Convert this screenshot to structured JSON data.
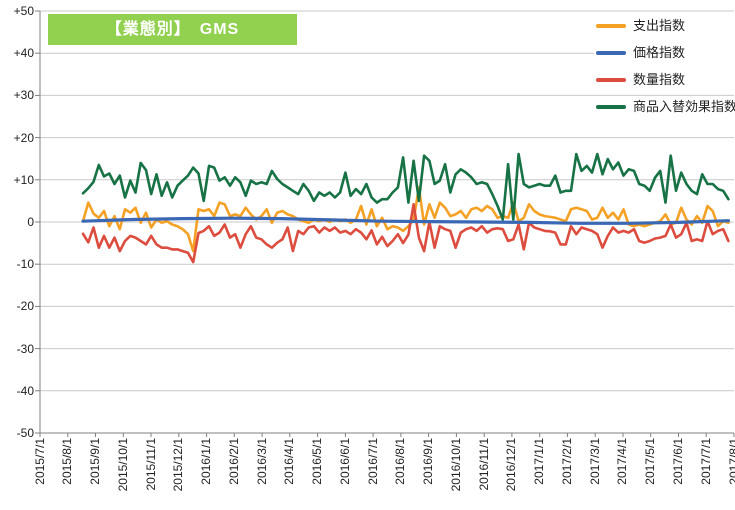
{
  "colors": {
    "title_bg": "#92D050",
    "grid": "#C9C9C9",
    "axis": "#808080",
    "orange": "#F5A125",
    "blue": "#3A68B5",
    "red": "#DC4C3F",
    "green": "#177245"
  },
  "chart_data": {
    "type": "line",
    "title": "【業態別】　GMS",
    "ylabel": "",
    "xlabel": "",
    "y_range": [
      -50,
      50
    ],
    "y_tick_step": 10,
    "y_tick_labels": [
      "+50",
      "+40",
      "+30",
      "+20",
      "+10",
      "0",
      "-10",
      "-20",
      "-30",
      "-40",
      "-50"
    ],
    "x_tick_labels": [
      "2015/7/1",
      "2015/8/1",
      "2015/9/1",
      "2015/10/1",
      "2015/11/1",
      "2015/12/1",
      "2016/1/1",
      "2016/2/1",
      "2016/3/1",
      "2016/4/1",
      "2016/5/1",
      "2016/6/1",
      "2016/7/1",
      "2016/8/1",
      "2016/9/1",
      "2016/10/1",
      "2016/11/1",
      "2016/12/1",
      "2017/1/1",
      "2017/2/1",
      "2017/3/1",
      "2017/4/1",
      "2017/5/1",
      "2017/6/1",
      "2017/7/1",
      "2017/8/1"
    ],
    "grid": "horizontal",
    "legend_position": "top-right",
    "data_start_month": 1.55,
    "data_end_month": 24.8,
    "series": [
      {
        "name": "支出指数",
        "key": "expenditure-index",
        "color": "#F5A125",
        "values": [
          0.2,
          4.6,
          2.0,
          1.0,
          2.6,
          -1.0,
          1.4,
          -1.7,
          3.0,
          2.2,
          3.4,
          -0.2,
          2.2,
          -1.3,
          0.6,
          -0.2,
          0.2,
          -0.6,
          -1.0,
          -1.7,
          -2.9,
          -6.9,
          3.0,
          2.6,
          3.0,
          1.4,
          4.6,
          4.2,
          1.4,
          1.8,
          1.4,
          3.4,
          1.8,
          0.6,
          1.4,
          3.0,
          -0.2,
          2.2,
          2.6,
          1.8,
          1.4,
          0.6,
          0.2,
          -0.2,
          0.6,
          0.2,
          0.6,
          0.0,
          0.6,
          0.2,
          0.6,
          -0.2,
          0.6,
          3.8,
          -0.6,
          3.0,
          -1.0,
          1.0,
          -1.7,
          -1.0,
          -1.3,
          -2.1,
          -1.0,
          0.5,
          8.2,
          -0.6,
          4.2,
          1.0,
          4.6,
          3.4,
          1.4,
          1.8,
          2.6,
          1.0,
          3.0,
          3.4,
          2.6,
          3.8,
          3.0,
          1.0,
          1.4,
          1.0,
          4.6,
          0.2,
          1.0,
          4.2,
          2.6,
          1.8,
          1.4,
          1.2,
          1.0,
          0.6,
          0.2,
          3.0,
          3.4,
          3.0,
          2.6,
          0.6,
          1.0,
          3.4,
          1.0,
          2.2,
          0.6,
          3.0,
          -0.6,
          -1.0,
          -0.6,
          -1.0,
          -0.6,
          -0.2,
          0.2,
          1.8,
          -0.6,
          -0.2,
          3.4,
          0.6,
          -0.6,
          1.4,
          -0.2,
          3.8,
          2.6,
          -1.0,
          0.2,
          -0.2
        ]
      },
      {
        "name": "価格指数",
        "key": "price-index",
        "color": "#3A68B5",
        "values": [
          0.2,
          0.6,
          0.8,
          0.9,
          0.8,
          0.5,
          0.2,
          0.1,
          0.0,
          -0.1,
          -0.3,
          -0.3,
          -0.1,
          0.3
        ]
      },
      {
        "name": "数量指数",
        "key": "quantity-index",
        "color": "#DC4C3F",
        "values": [
          -2.8,
          -4.8,
          -1.3,
          -6.1,
          -3.3,
          -6.1,
          -3.7,
          -6.9,
          -4.5,
          -3.3,
          -3.7,
          -4.5,
          -5.3,
          -3.3,
          -5.3,
          -6.1,
          -6.1,
          -6.5,
          -6.5,
          -6.9,
          -7.3,
          -9.5,
          -2.6,
          -2.1,
          -1.0,
          -3.3,
          -2.5,
          -0.6,
          -3.7,
          -2.9,
          -6.1,
          -2.9,
          -1.0,
          -3.7,
          -4.1,
          -5.3,
          -6.1,
          -4.9,
          -4.1,
          -1.3,
          -6.9,
          -2.1,
          -2.9,
          -1.3,
          -1.0,
          -2.5,
          -1.3,
          -2.1,
          -1.3,
          -2.5,
          -2.1,
          -2.9,
          -1.7,
          -2.5,
          -4.1,
          -2.0,
          -5.3,
          -3.5,
          -5.7,
          -4.5,
          -2.9,
          -5.0,
          -3.0,
          4.2,
          -3.7,
          -6.9,
          0.0,
          -6.1,
          -1.0,
          -1.7,
          -2.1,
          -6.1,
          -2.5,
          -1.7,
          -1.3,
          -2.1,
          -1.0,
          -2.5,
          -1.7,
          -1.5,
          -1.7,
          -4.5,
          -4.1,
          -0.6,
          -6.5,
          -0.2,
          -1.3,
          -1.7,
          -2.1,
          -2.2,
          -2.5,
          -5.3,
          -5.3,
          -1.0,
          -2.9,
          -1.3,
          -1.7,
          -2.1,
          -2.9,
          -6.1,
          -3.3,
          -1.3,
          -2.5,
          -2.1,
          -2.5,
          -1.7,
          -4.5,
          -4.9,
          -4.5,
          -3.9,
          -3.7,
          -3.3,
          -0.6,
          -3.7,
          -2.9,
          -0.2,
          -4.5,
          -4.1,
          -4.5,
          0.2,
          -2.9,
          -2.1,
          -1.7,
          -4.5
        ]
      },
      {
        "name": "商品入替効果指数",
        "key": "product-mix-effect-index",
        "color": "#177245",
        "values": [
          6.8,
          8.0,
          9.5,
          13.5,
          10.8,
          11.5,
          9.0,
          11.0,
          5.8,
          9.8,
          7.0,
          14.0,
          12.3,
          6.6,
          11.3,
          6.2,
          9.4,
          5.8,
          8.6,
          9.8,
          11.0,
          12.9,
          11.5,
          5.0,
          13.3,
          12.9,
          9.8,
          10.6,
          8.6,
          10.6,
          9.4,
          6.2,
          9.8,
          9.0,
          9.4,
          9.0,
          12.1,
          10.2,
          9.0,
          8.2,
          7.4,
          6.6,
          9.0,
          7.4,
          5.0,
          7.0,
          6.2,
          7.0,
          5.8,
          7.0,
          11.7,
          6.2,
          7.8,
          6.6,
          9.0,
          5.8,
          4.6,
          5.4,
          5.4,
          7.0,
          8.2,
          15.3,
          4.6,
          14.5,
          5.0,
          15.7,
          14.5,
          9.0,
          9.8,
          13.7,
          7.0,
          11.3,
          12.5,
          11.7,
          10.6,
          9.0,
          9.4,
          9.0,
          6.6,
          3.8,
          0.6,
          13.7,
          0.6,
          16.1,
          9.0,
          8.2,
          8.6,
          9.0,
          8.6,
          8.6,
          11.0,
          7.0,
          7.4,
          7.4,
          16.1,
          12.1,
          13.3,
          11.7,
          16.1,
          11.3,
          14.9,
          12.5,
          14.1,
          11.0,
          12.5,
          12.1,
          9.0,
          8.6,
          7.4,
          10.5,
          12.1,
          4.6,
          15.7,
          7.4,
          11.7,
          9.0,
          7.4,
          6.6,
          11.3,
          9.0,
          9.0,
          7.8,
          7.4,
          5.4
        ]
      }
    ]
  }
}
